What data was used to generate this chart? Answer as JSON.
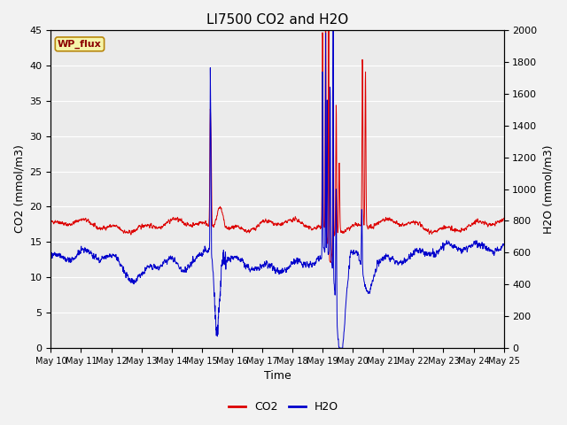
{
  "title": "LI7500 CO2 and H2O",
  "xlabel": "Time",
  "ylabel_left": "CO2 (mmol/m3)",
  "ylabel_right": "H2O (mmol/m3)",
  "annotation": "WP_flux",
  "ylim_left": [
    0,
    45
  ],
  "ylim_right": [
    0,
    2000
  ],
  "yticks_left": [
    0,
    5,
    10,
    15,
    20,
    25,
    30,
    35,
    40,
    45
  ],
  "yticks_right": [
    0,
    200,
    400,
    600,
    800,
    1000,
    1200,
    1400,
    1600,
    1800,
    2000
  ],
  "xtick_labels": [
    "May 10",
    "May 11",
    "May 12",
    "May 13",
    "May 14",
    "May 15",
    "May 16",
    "May 17",
    "May 18",
    "May 19",
    "May 20",
    "May 21",
    "May 22",
    "May 23",
    "May 24",
    "May 25"
  ],
  "co2_color": "#dd0000",
  "h2o_color": "#0000cc",
  "plot_bg_color": "#ebebeb",
  "fig_bg_color": "#f2f2f2",
  "grid_color": "#ffffff",
  "linewidth": 0.7,
  "seed": 42
}
